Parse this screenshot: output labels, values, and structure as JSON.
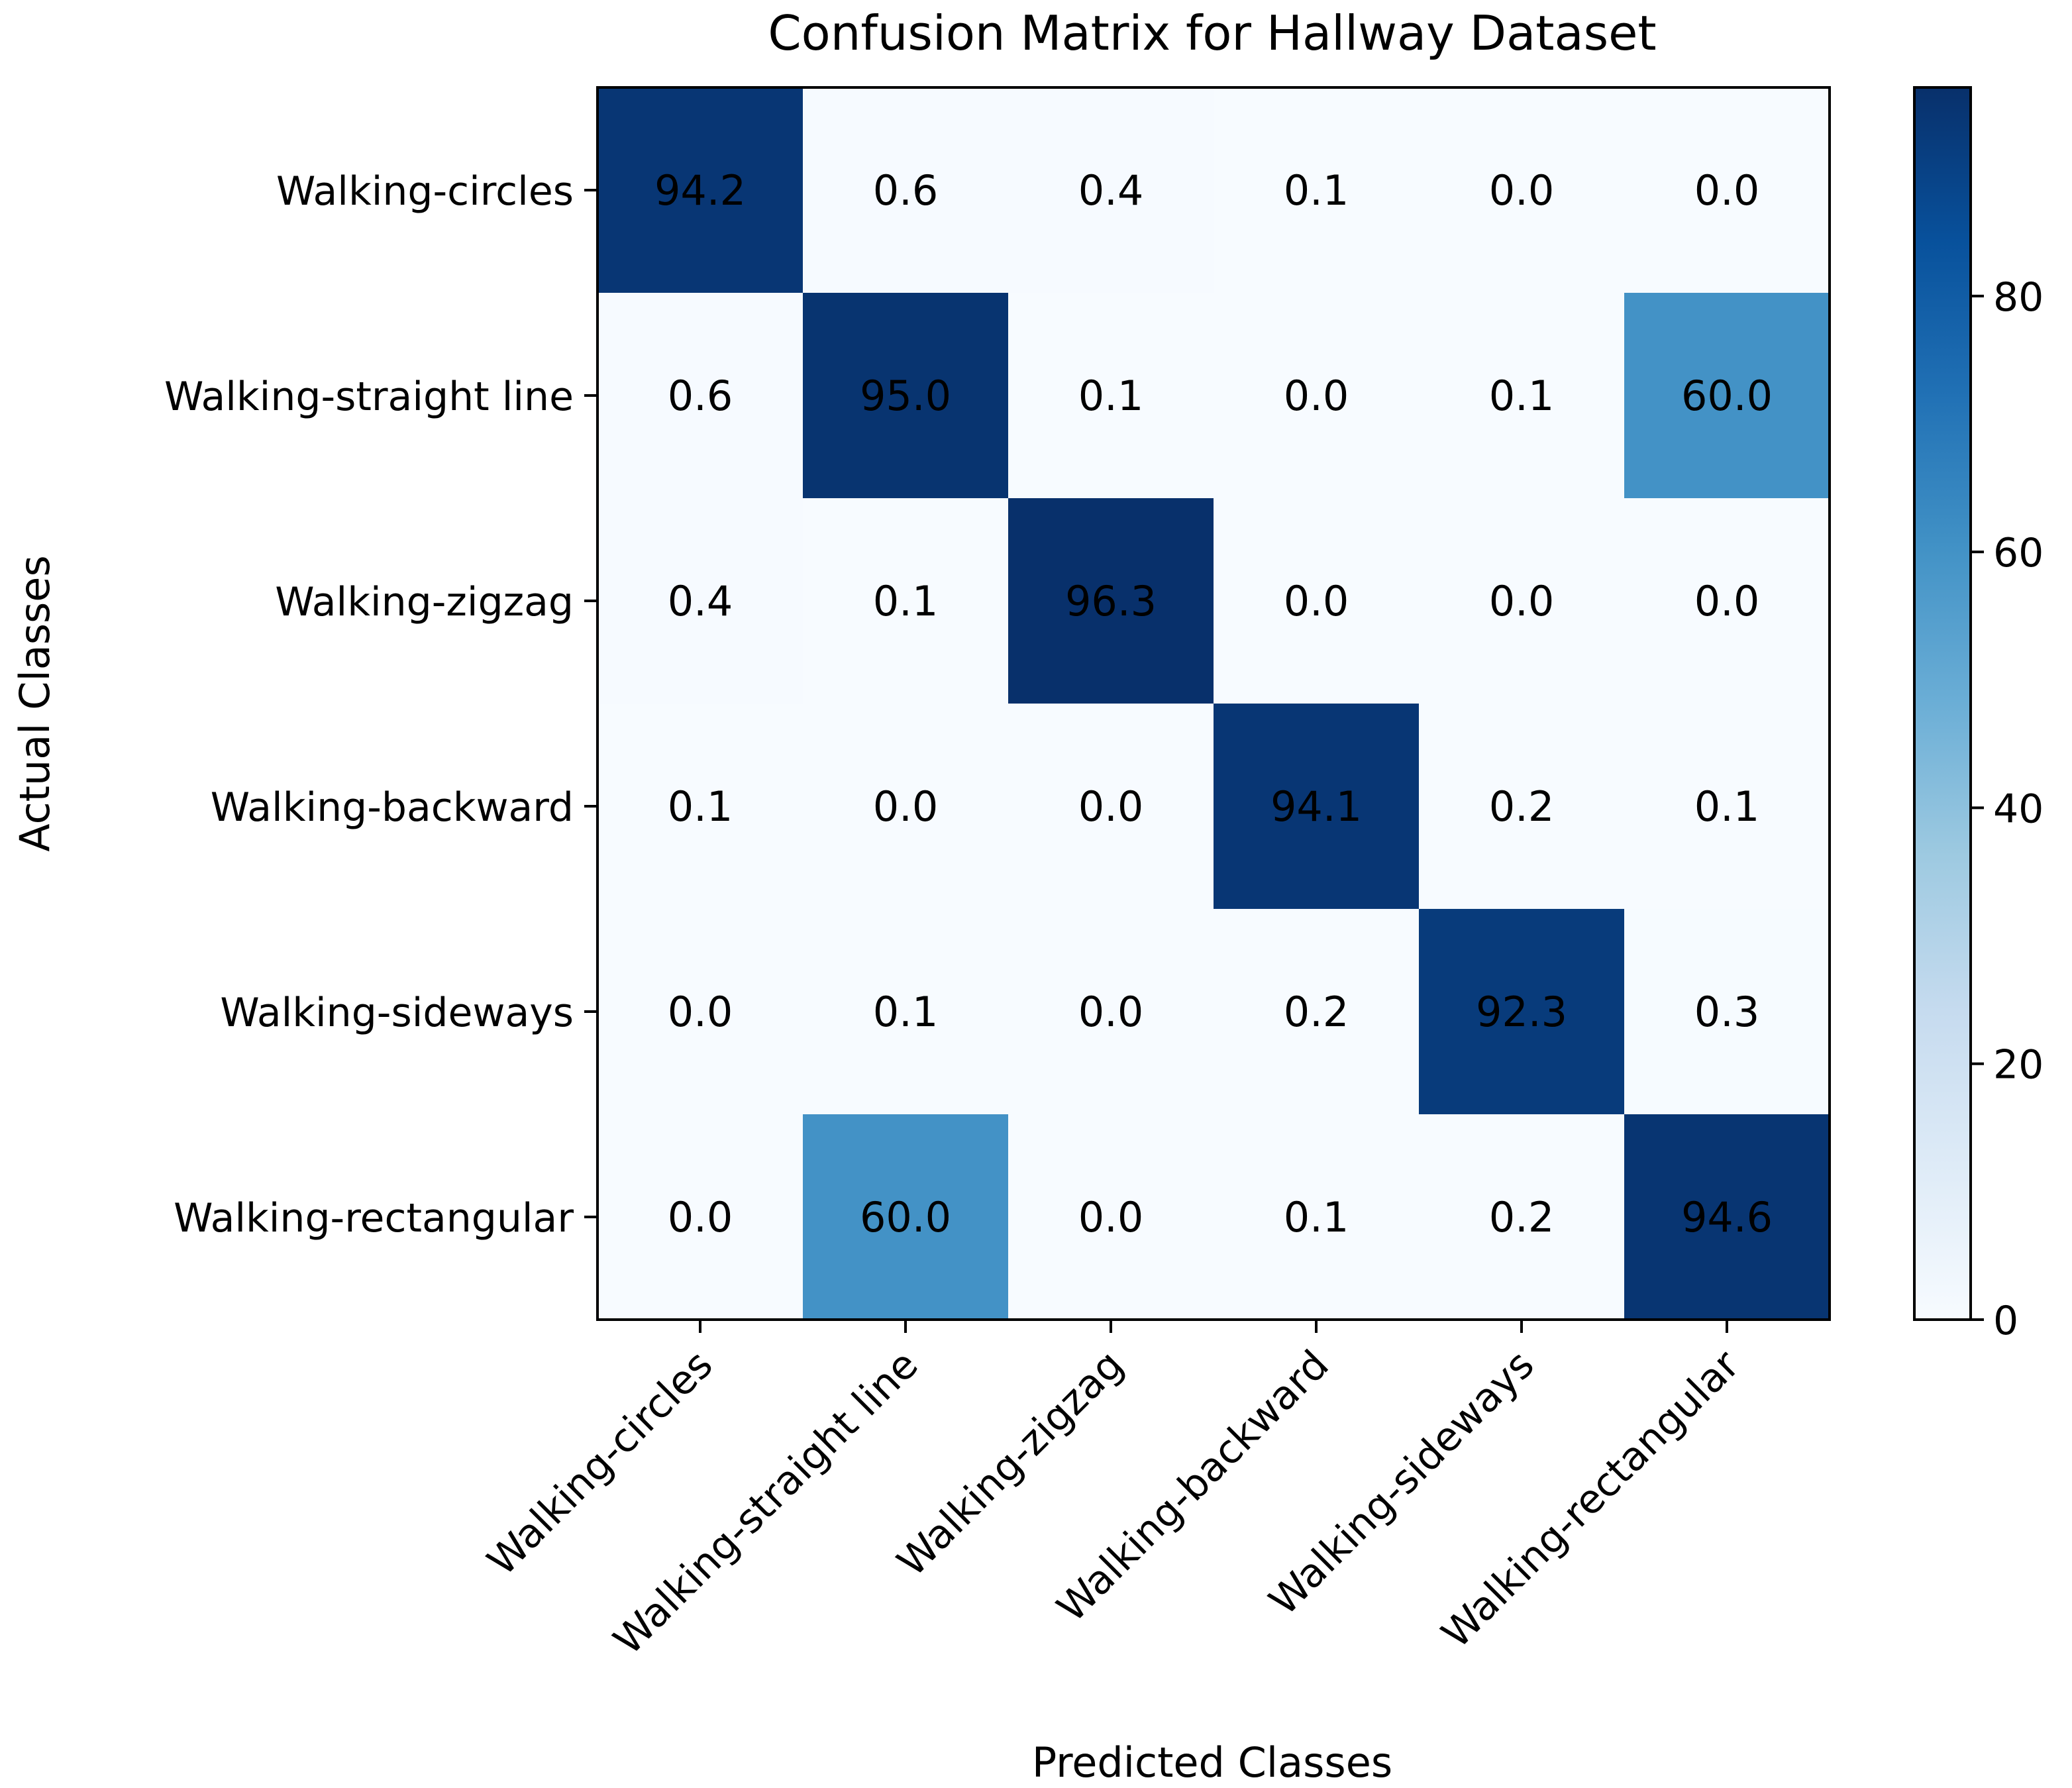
{
  "chart_data": {
    "type": "heatmap",
    "title": "Confusion Matrix for Hallway Dataset",
    "xlabel": "Predicted Classes",
    "ylabel": "Actual Classes",
    "x_categories": [
      "Walking-circles",
      "Walking-straight line",
      "Walking-zigzag",
      "Walking-backward",
      "Walking-sideways",
      "Walking-rectangular"
    ],
    "y_categories": [
      "Walking-circles",
      "Walking-straight line",
      "Walking-zigzag",
      "Walking-backward",
      "Walking-sideways",
      "Walking-rectangular"
    ],
    "values": [
      [
        94.2,
        0.6,
        0.4,
        0.1,
        0.0,
        0.0
      ],
      [
        0.6,
        95.0,
        0.1,
        0.0,
        0.1,
        60.0
      ],
      [
        0.4,
        0.1,
        96.3,
        0.0,
        0.0,
        0.0
      ],
      [
        0.1,
        0.0,
        0.0,
        94.1,
        0.2,
        0.1
      ],
      [
        0.0,
        0.1,
        0.0,
        0.2,
        92.3,
        0.3
      ],
      [
        0.0,
        60.0,
        0.0,
        0.1,
        0.2,
        94.6
      ]
    ],
    "value_format": "0.1f",
    "colormap": "Blues",
    "colorbar": {
      "range": [
        0,
        96.3
      ],
      "ticks": [
        0,
        20,
        40,
        60,
        80
      ]
    },
    "grid": false,
    "legend": "colorbar right"
  }
}
